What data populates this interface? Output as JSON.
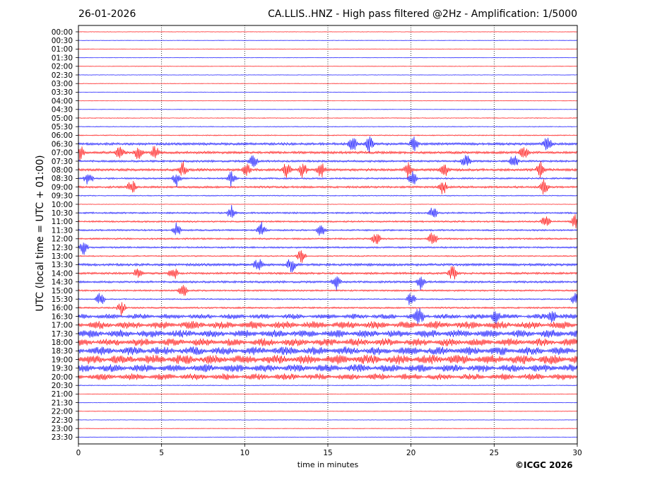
{
  "header": {
    "date": "26-01-2026",
    "title": "CA.LLIS..HNZ - High pass filtered @2Hz - Amplification: 1/5000"
  },
  "footer": {
    "copyright": "©ICGC 2026"
  },
  "chart_data": {
    "type": "line",
    "title": "CA.LLIS..HNZ - High pass filtered @2Hz - Amplification: 1/5000",
    "xlabel": "time in minutes",
    "ylabel": "UTC (local time = UTC + 01:00)",
    "xlim": [
      0,
      30
    ],
    "x_ticks": [
      0,
      5,
      10,
      15,
      20,
      25,
      30
    ],
    "rows": [
      "00:00",
      "00:30",
      "01:00",
      "01:30",
      "02:00",
      "02:30",
      "03:00",
      "03:30",
      "04:00",
      "04:30",
      "05:00",
      "05:30",
      "06:00",
      "06:30",
      "07:00",
      "07:30",
      "08:00",
      "08:30",
      "09:00",
      "09:30",
      "10:00",
      "10:30",
      "11:00",
      "11:30",
      "12:00",
      "12:30",
      "13:00",
      "13:30",
      "14:00",
      "14:30",
      "15:00",
      "15:30",
      "16:00",
      "16:30",
      "17:00",
      "17:30",
      "18:00",
      "18:30",
      "19:00",
      "19:30",
      "20:00",
      "20:30",
      "21:00",
      "21:30",
      "22:00",
      "22:30",
      "23:00",
      "23:30"
    ],
    "row_colors": [
      "#ff0000",
      "#0000ff"
    ],
    "vertical_grid": "dotted",
    "noise_level": [
      0.3,
      0.3,
      0.3,
      0.3,
      0.3,
      0.3,
      0.3,
      0.3,
      0.3,
      0.3,
      0.4,
      0.4,
      0.5,
      1.2,
      1.2,
      1.0,
      1.2,
      0.8,
      1.0,
      0.5,
      0.3,
      0.8,
      0.8,
      0.8,
      0.8,
      0.8,
      0.6,
      1.2,
      1.0,
      1.0,
      0.8,
      0.6,
      0.8,
      1.6,
      2.4,
      2.4,
      2.4,
      2.6,
      3.0,
      2.4,
      2.0,
      0.4,
      0.3,
      0.3,
      0.3,
      0.3,
      0.3,
      0.3
    ],
    "bursts": [
      {
        "row": "06:30",
        "minutes": [
          16.5,
          17.5,
          28.2,
          20.2
        ]
      },
      {
        "row": "07:00",
        "minutes": [
          0.1,
          2.5,
          3.6,
          4.6,
          26.8
        ]
      },
      {
        "row": "07:30",
        "minutes": [
          10.5,
          23.3,
          26.2
        ]
      },
      {
        "row": "08:00",
        "minutes": [
          6.3,
          10.1,
          12.5,
          13.5,
          14.6,
          19.8,
          22.0,
          27.8
        ]
      },
      {
        "row": "08:30",
        "minutes": [
          0.6,
          5.9,
          9.2,
          20.1
        ]
      },
      {
        "row": "09:00",
        "minutes": [
          3.2,
          21.9,
          28.0
        ]
      },
      {
        "row": "10:30",
        "minutes": [
          9.2,
          21.3
        ]
      },
      {
        "row": "11:00",
        "minutes": [
          29.9,
          28.1
        ]
      },
      {
        "row": "11:30",
        "minutes": [
          5.9,
          11.0,
          14.6
        ]
      },
      {
        "row": "12:00",
        "minutes": [
          17.9,
          21.3
        ]
      },
      {
        "row": "12:30",
        "minutes": [
          0.3
        ]
      },
      {
        "row": "13:00",
        "minutes": [
          13.4
        ]
      },
      {
        "row": "13:30",
        "minutes": [
          10.8,
          12.8
        ]
      },
      {
        "row": "14:00",
        "minutes": [
          3.6,
          5.7,
          22.5
        ]
      },
      {
        "row": "14:30",
        "minutes": [
          20.6,
          15.5
        ]
      },
      {
        "row": "15:00",
        "minutes": [
          6.3
        ]
      },
      {
        "row": "15:30",
        "minutes": [
          1.3,
          20.0,
          29.9
        ]
      },
      {
        "row": "16:00",
        "minutes": [
          2.6
        ]
      },
      {
        "row": "16:30",
        "minutes": [
          20.5,
          25.1,
          28.5
        ]
      }
    ]
  }
}
